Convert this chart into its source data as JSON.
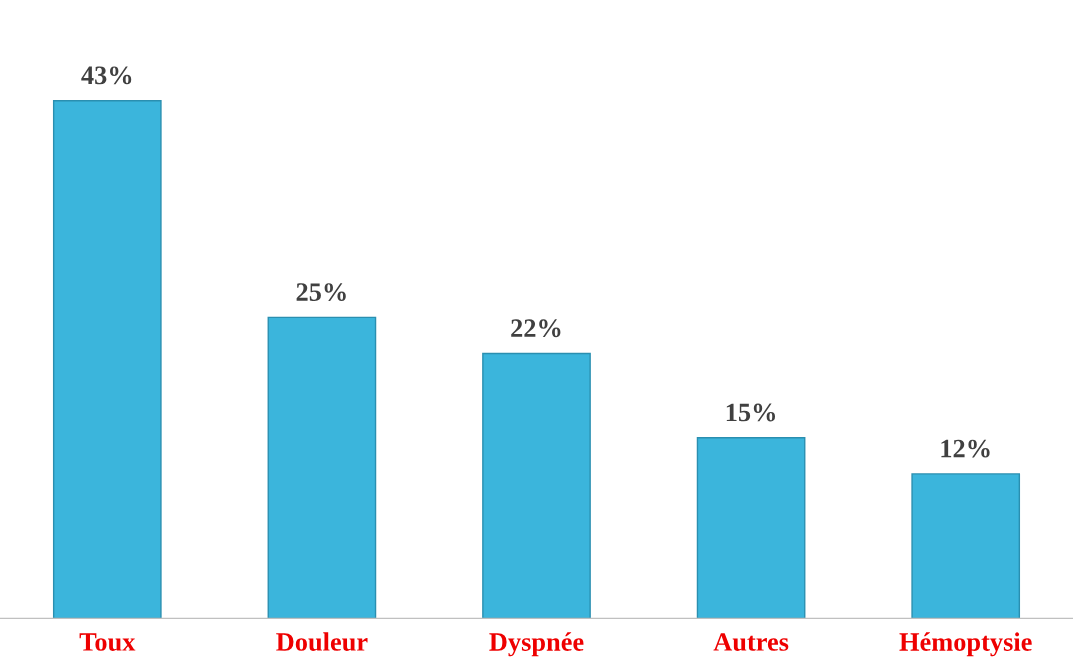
{
  "chart_data": {
    "type": "bar",
    "categories": [
      "Toux",
      "Douleur",
      "Dyspnée",
      "Autres",
      "Hémoptysie"
    ],
    "values": [
      43,
      25,
      22,
      15,
      12
    ],
    "value_labels": [
      "43%",
      "25%",
      "22%",
      "15%",
      "12%"
    ],
    "color": "#3bb5dc",
    "grid": false,
    "legend": false,
    "tick_labels": "x"
  }
}
